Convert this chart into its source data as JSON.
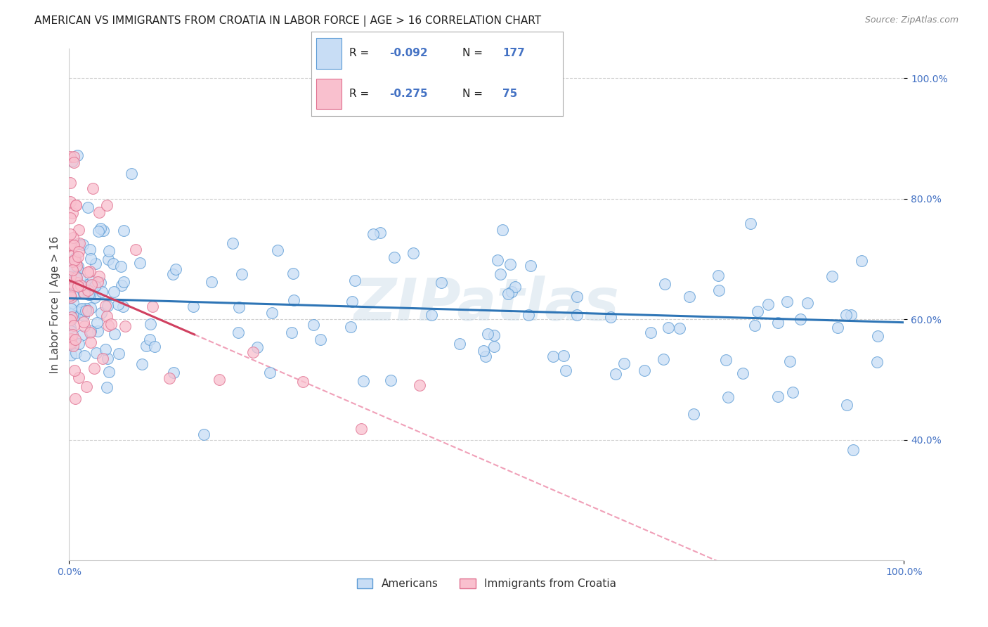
{
  "title": "AMERICAN VS IMMIGRANTS FROM CROATIA IN LABOR FORCE | AGE > 16 CORRELATION CHART",
  "source": "Source: ZipAtlas.com",
  "ylabel": "In Labor Force | Age > 16",
  "watermark": "ZIPatlas",
  "legend_labels": [
    "Americans",
    "Immigrants from Croatia"
  ],
  "R_american": -0.092,
  "N_american": 177,
  "R_croatia": -0.275,
  "N_croatia": 75,
  "xlim": [
    0.0,
    1.0
  ],
  "ylim": [
    0.2,
    1.05
  ],
  "blue_scatter_face": "#c8ddf5",
  "blue_scatter_edge": "#5b9bd5",
  "pink_scatter_face": "#f9c0ce",
  "pink_scatter_edge": "#e07090",
  "blue_line_color": "#2e75b6",
  "pink_line_color": "#d04060",
  "pink_dash_color": "#f0a0b8",
  "axis_tick_color": "#4472c4",
  "grid_color": "#d0d0d0",
  "background_color": "#ffffff",
  "title_fontsize": 11,
  "source_fontsize": 9,
  "ylabel_fontsize": 11,
  "tick_fontsize": 10,
  "legend_box_color": "#e8f0fb",
  "legend_box_edge": "#aaaacc"
}
